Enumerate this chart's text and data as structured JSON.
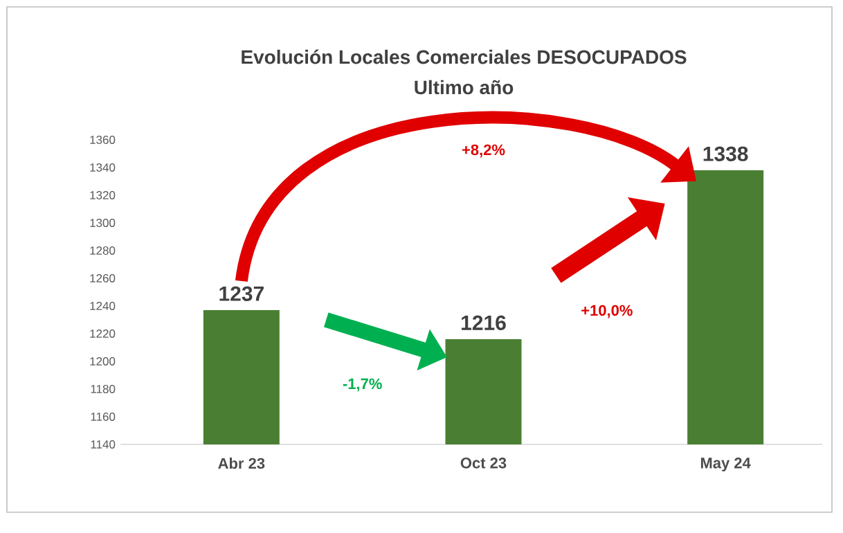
{
  "chart_data": {
    "type": "bar",
    "title": "Evolución Locales Comerciales DESOCUPADOS",
    "subtitle": "Ultimo año",
    "categories": [
      "Abr 23",
      "Oct 23",
      "May 24"
    ],
    "values": [
      1237,
      1216,
      1338
    ],
    "color": "#4a7f33",
    "ylim": [
      1140,
      1360
    ],
    "yticks": [
      1140,
      1160,
      1180,
      1200,
      1220,
      1240,
      1260,
      1280,
      1300,
      1320,
      1340,
      1360
    ],
    "data_labels": true,
    "annotations": [
      "+8,2%",
      "-1,7%",
      "+10,0%"
    ]
  }
}
